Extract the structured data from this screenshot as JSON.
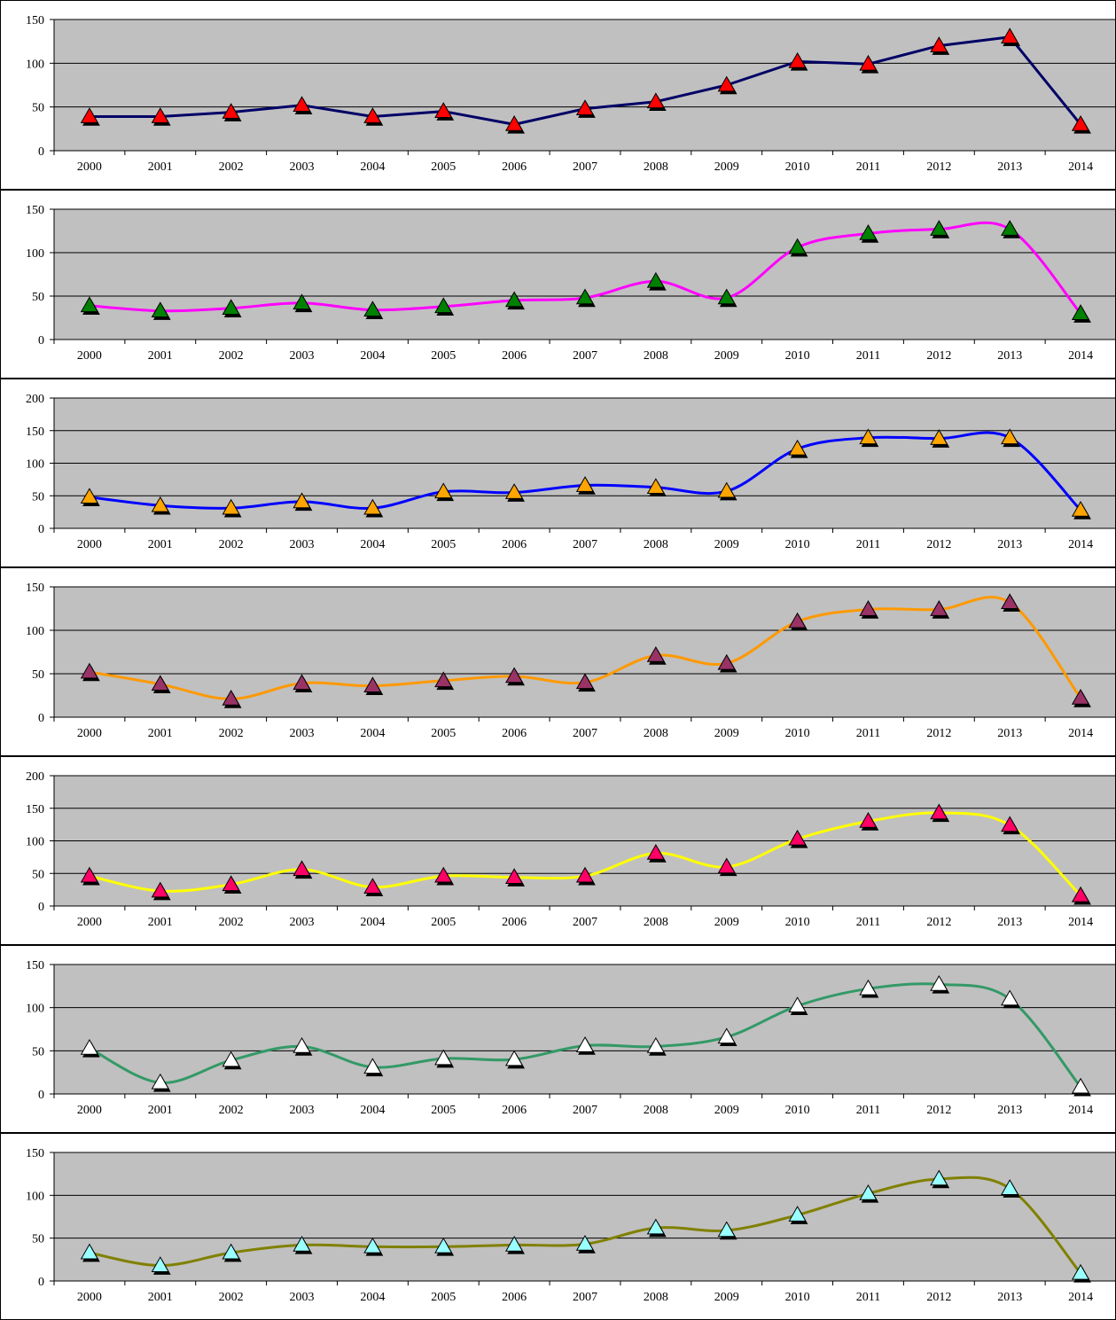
{
  "chart_data": [
    {
      "type": "line",
      "smooth": false,
      "categories": [
        "2000",
        "2001",
        "2002",
        "2003",
        "2004",
        "2005",
        "2006",
        "2007",
        "2008",
        "2009",
        "2010",
        "2011",
        "2012",
        "2013",
        "2014"
      ],
      "yticks": [
        "0",
        "50",
        "100",
        "150"
      ],
      "ylim": [
        0,
        150
      ],
      "line_color": "#000066",
      "marker_fill": "#ff0000",
      "values": [
        39,
        39,
        44,
        52,
        39,
        45,
        30,
        48,
        56,
        75,
        102,
        99,
        120,
        130,
        30
      ]
    },
    {
      "type": "line",
      "smooth": true,
      "categories": [
        "2000",
        "2001",
        "2002",
        "2003",
        "2004",
        "2005",
        "2006",
        "2007",
        "2008",
        "2009",
        "2010",
        "2011",
        "2012",
        "2013",
        "2014"
      ],
      "yticks": [
        "0",
        "50",
        "100",
        "150"
      ],
      "ylim": [
        0,
        150
      ],
      "line_color": "#ff00ff",
      "marker_fill": "#008000",
      "values": [
        39,
        33,
        36,
        42,
        34,
        38,
        45,
        48,
        67,
        48,
        106,
        122,
        127,
        127,
        30
      ]
    },
    {
      "type": "line",
      "smooth": true,
      "categories": [
        "2000",
        "2001",
        "2002",
        "2003",
        "2004",
        "2005",
        "2006",
        "2007",
        "2008",
        "2009",
        "2010",
        "2011",
        "2012",
        "2013",
        "2014"
      ],
      "yticks": [
        "0",
        "50",
        "100",
        "150",
        "200"
      ],
      "ylim": [
        0,
        200
      ],
      "line_color": "#0000ff",
      "marker_fill": "#ffa500",
      "values": [
        48,
        35,
        31,
        41,
        31,
        56,
        55,
        66,
        63,
        57,
        122,
        139,
        138,
        139,
        28
      ]
    },
    {
      "type": "line",
      "smooth": true,
      "categories": [
        "2000",
        "2001",
        "2002",
        "2003",
        "2004",
        "2005",
        "2006",
        "2007",
        "2008",
        "2009",
        "2010",
        "2011",
        "2012",
        "2013",
        "2014"
      ],
      "yticks": [
        "0",
        "50",
        "100",
        "150"
      ],
      "ylim": [
        0,
        150
      ],
      "line_color": "#ff9900",
      "marker_fill": "#993366",
      "values": [
        52,
        38,
        21,
        39,
        36,
        42,
        47,
        40,
        71,
        62,
        110,
        124,
        124,
        132,
        22
      ]
    },
    {
      "type": "line",
      "smooth": true,
      "categories": [
        "2000",
        "2001",
        "2002",
        "2003",
        "2004",
        "2005",
        "2006",
        "2007",
        "2008",
        "2009",
        "2010",
        "2011",
        "2012",
        "2013",
        "2014"
      ],
      "yticks": [
        "0",
        "50",
        "100",
        "150",
        "200"
      ],
      "ylim": [
        0,
        200
      ],
      "line_color": "#ffff00",
      "marker_fill": "#ff0066",
      "values": [
        46,
        23,
        33,
        56,
        29,
        46,
        44,
        46,
        81,
        60,
        103,
        130,
        143,
        124,
        16
      ]
    },
    {
      "type": "line",
      "smooth": true,
      "categories": [
        "2000",
        "2001",
        "2002",
        "2003",
        "2004",
        "2005",
        "2006",
        "2007",
        "2008",
        "2009",
        "2010",
        "2011",
        "2012",
        "2013",
        "2014"
      ],
      "yticks": [
        "0",
        "50",
        "100",
        "150"
      ],
      "ylim": [
        0,
        150
      ],
      "line_color": "#339966",
      "marker_fill": "#ffffff",
      "values": [
        53,
        13,
        39,
        55,
        31,
        41,
        40,
        56,
        55,
        66,
        102,
        122,
        127,
        110,
        8
      ]
    },
    {
      "type": "line",
      "smooth": true,
      "categories": [
        "2000",
        "2001",
        "2002",
        "2003",
        "2004",
        "2005",
        "2006",
        "2007",
        "2008",
        "2009",
        "2010",
        "2011",
        "2012",
        "2013",
        "2014"
      ],
      "yticks": [
        "0",
        "50",
        "100",
        "150"
      ],
      "ylim": [
        0,
        150
      ],
      "line_color": "#808000",
      "marker_fill": "#99ffff",
      "values": [
        33,
        18,
        33,
        42,
        40,
        40,
        42,
        43,
        62,
        59,
        77,
        102,
        119,
        108,
        9
      ]
    }
  ]
}
